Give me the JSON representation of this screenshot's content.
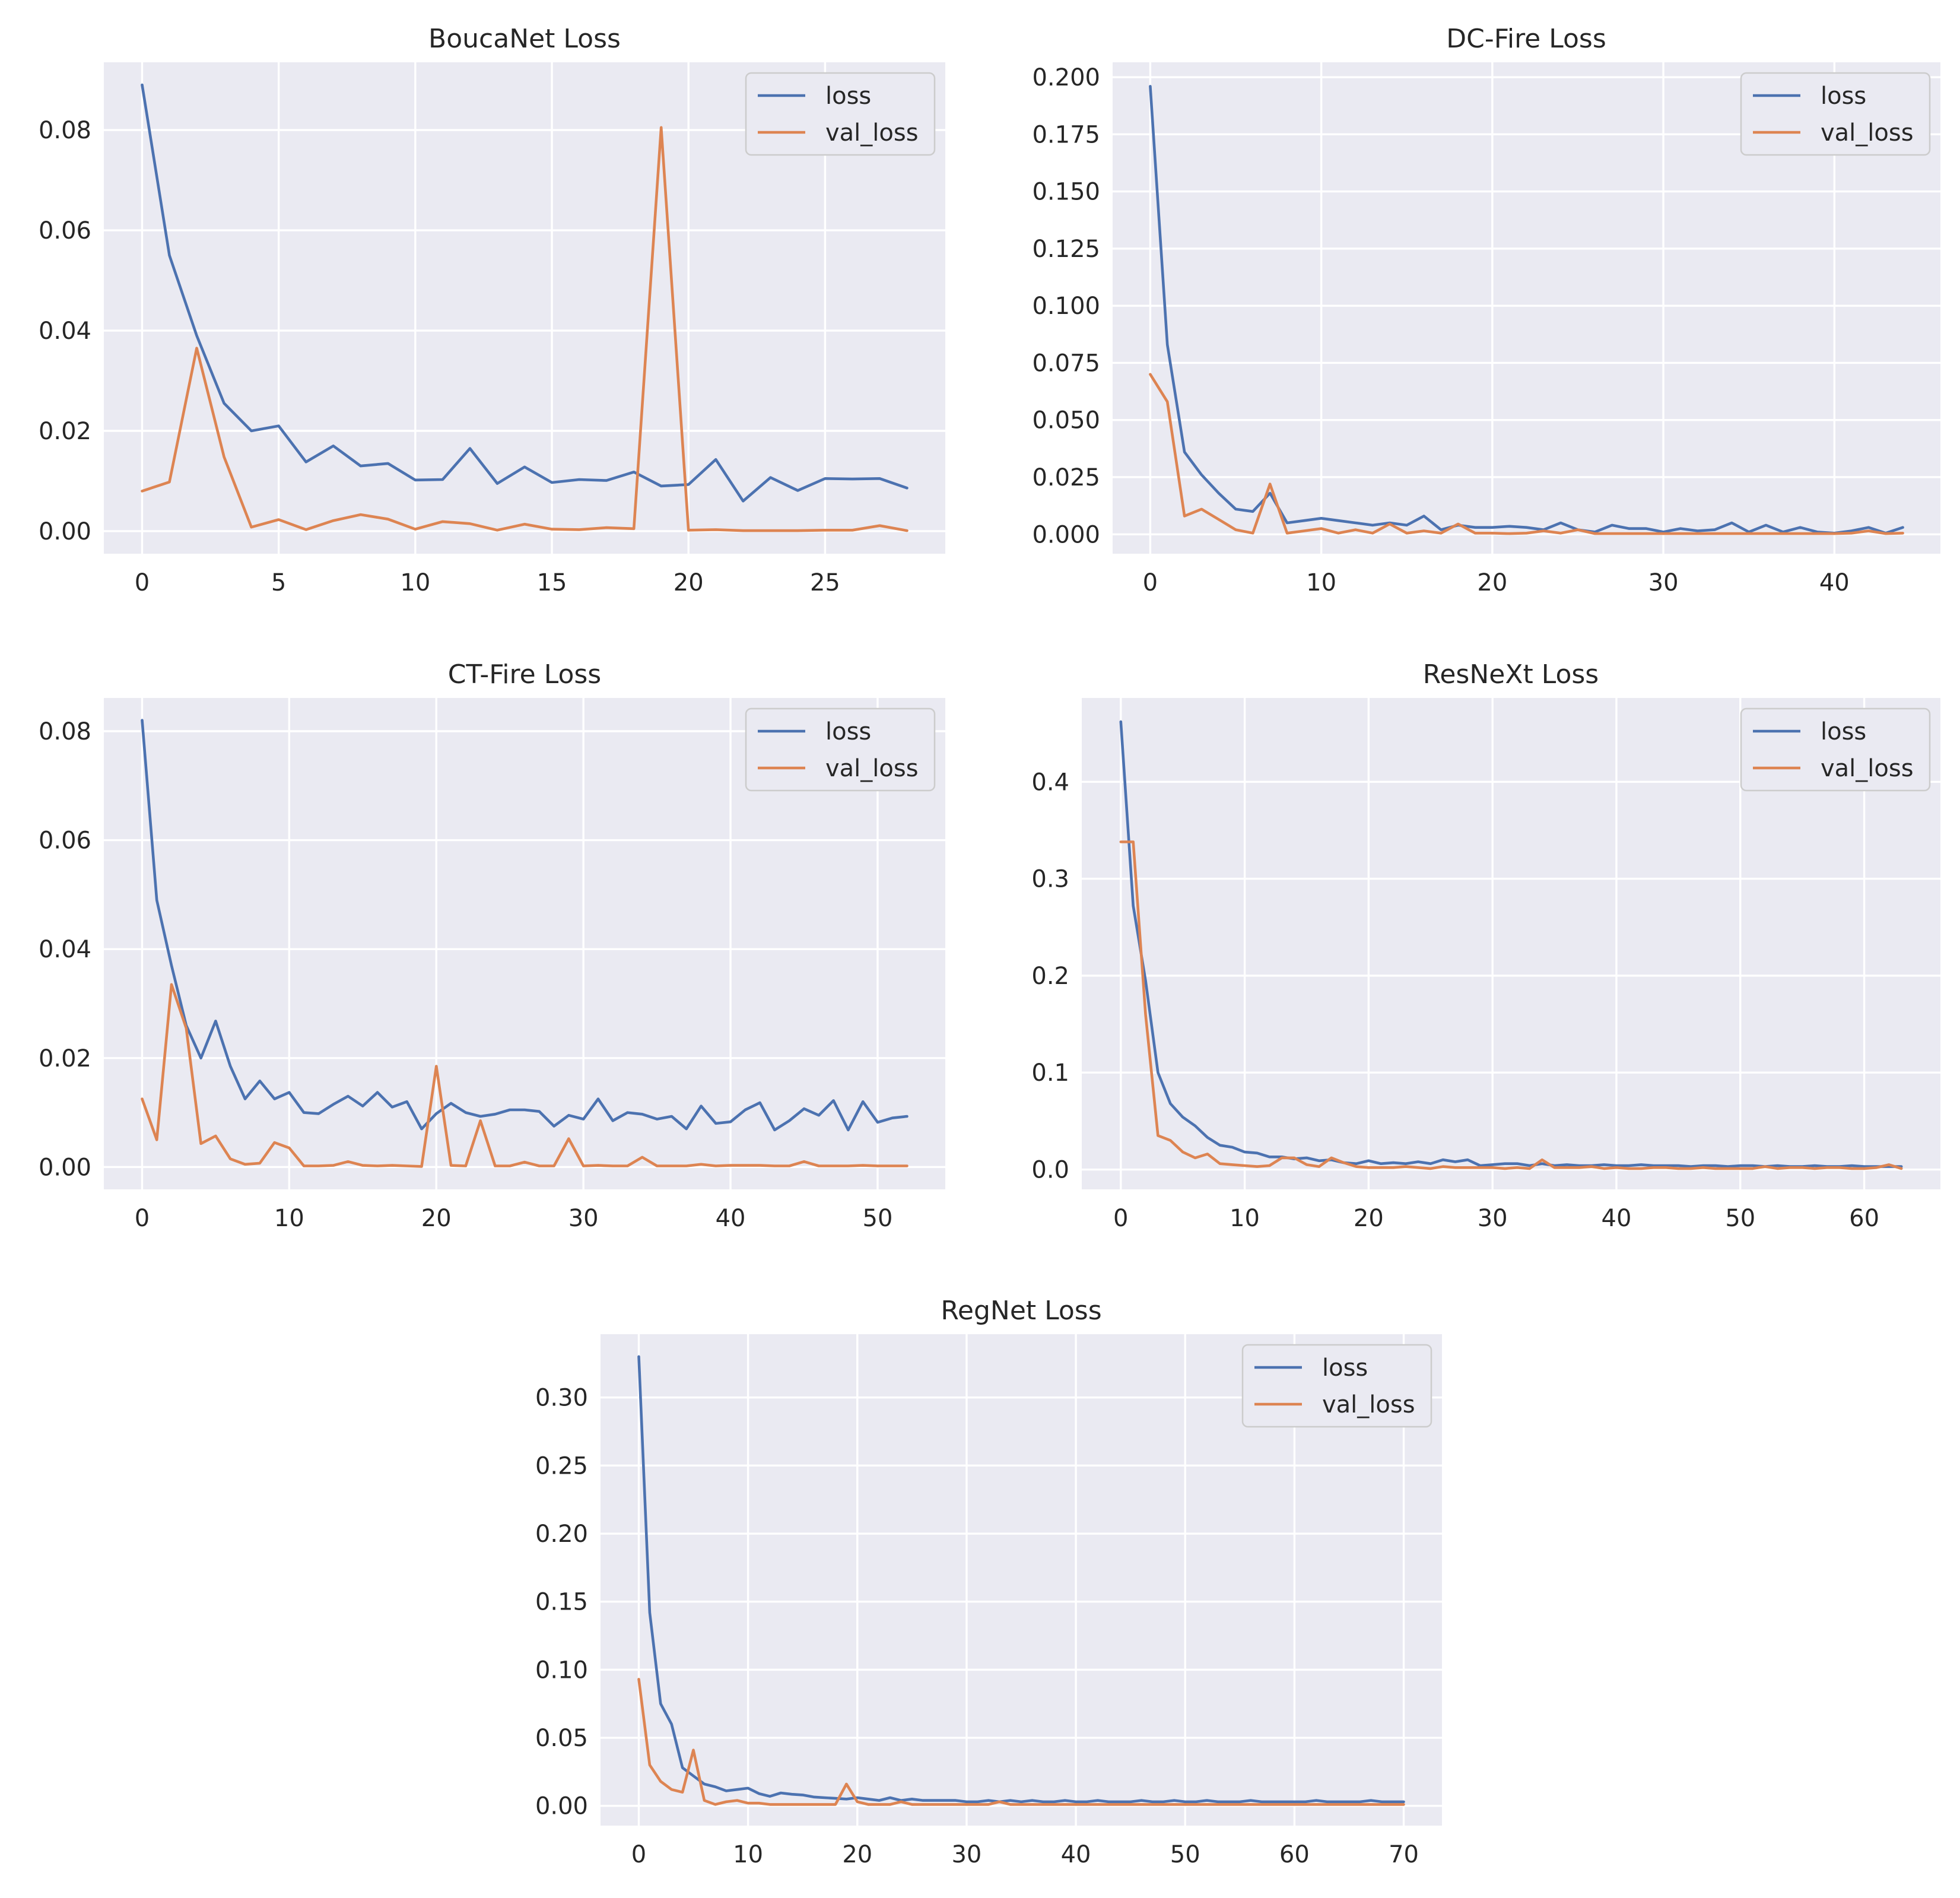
{
  "figure": {
    "background": "#ffffff",
    "plot_background": "#eaeaf2",
    "grid_color": "#ffffff",
    "text_color": "#262626"
  },
  "colors": {
    "loss": "#4c72b0",
    "val_loss": "#dd8452"
  },
  "chart_data": [
    {
      "type": "line",
      "title": "BoucaNet Loss",
      "xlabel": "",
      "ylabel": "",
      "xlim": [
        -1.4,
        29.4
      ],
      "ylim": [
        -0.0045,
        0.0935
      ],
      "xticks": [
        0,
        5,
        10,
        15,
        20,
        25
      ],
      "xtick_labels": [
        "0",
        "5",
        "10",
        "15",
        "20",
        "25"
      ],
      "yticks": [
        0.0,
        0.02,
        0.04,
        0.06,
        0.08
      ],
      "ytick_labels": [
        "0.00",
        "0.02",
        "0.04",
        "0.06",
        "0.08"
      ],
      "grid": true,
      "legend": {
        "position": "top-right",
        "entries": [
          "loss",
          "val_loss"
        ]
      },
      "series": [
        {
          "name": "loss",
          "color": "#4c72b0",
          "x_start": 0,
          "values": [
            0.089,
            0.055,
            0.039,
            0.0255,
            0.02,
            0.021,
            0.0138,
            0.017,
            0.013,
            0.0135,
            0.0102,
            0.0103,
            0.0165,
            0.0095,
            0.0128,
            0.0097,
            0.0103,
            0.0101,
            0.0118,
            0.009,
            0.0093,
            0.0143,
            0.006,
            0.0107,
            0.0081,
            0.0105,
            0.0104,
            0.0105,
            0.0086
          ]
        },
        {
          "name": "val_loss",
          "color": "#dd8452",
          "x_start": 0,
          "values": [
            0.008,
            0.0098,
            0.0365,
            0.0148,
            0.0008,
            0.0023,
            0.0003,
            0.0021,
            0.0033,
            0.0024,
            0.0004,
            0.0019,
            0.0015,
            0.0002,
            0.0014,
            0.0004,
            0.0003,
            0.0007,
            0.0005,
            0.0805,
            0.0002,
            0.0003,
            0.0001,
            0.0001,
            0.0001,
            0.0002,
            0.0002,
            0.0011,
            0.0001
          ]
        }
      ]
    },
    {
      "type": "line",
      "title": "DC-Fire Loss",
      "xlabel": "",
      "ylabel": "",
      "xlim": [
        -2.2,
        46.2
      ],
      "ylim": [
        -0.0085,
        0.2065
      ],
      "xticks": [
        0,
        10,
        20,
        30,
        40
      ],
      "xtick_labels": [
        "0",
        "10",
        "20",
        "30",
        "40"
      ],
      "yticks": [
        0.0,
        0.025,
        0.05,
        0.075,
        0.1,
        0.125,
        0.15,
        0.175,
        0.2
      ],
      "ytick_labels": [
        "0.000",
        "0.025",
        "0.050",
        "0.075",
        "0.100",
        "0.125",
        "0.150",
        "0.175",
        "0.200"
      ],
      "grid": true,
      "legend": {
        "position": "top-right",
        "entries": [
          "loss",
          "val_loss"
        ]
      },
      "series": [
        {
          "name": "loss",
          "color": "#4c72b0",
          "x_start": 0,
          "values": [
            0.196,
            0.083,
            0.036,
            0.026,
            0.018,
            0.011,
            0.01,
            0.018,
            0.005,
            0.006,
            0.007,
            0.006,
            0.005,
            0.004,
            0.005,
            0.004,
            0.008,
            0.002,
            0.004,
            0.003,
            0.003,
            0.0035,
            0.003,
            0.002,
            0.005,
            0.002,
            0.001,
            0.004,
            0.0025,
            0.0025,
            0.001,
            0.0025,
            0.0015,
            0.002,
            0.005,
            0.001,
            0.004,
            0.001,
            0.003,
            0.001,
            0.0005,
            0.0015,
            0.003,
            0.0005,
            0.003
          ]
        },
        {
          "name": "val_loss",
          "color": "#dd8452",
          "x_start": 0,
          "values": [
            0.07,
            0.058,
            0.008,
            0.011,
            0.0065,
            0.002,
            0.0005,
            0.022,
            0.0005,
            0.0015,
            0.0025,
            0.0005,
            0.002,
            0.0005,
            0.0045,
            0.0005,
            0.0015,
            0.0005,
            0.0045,
            0.0005,
            0.0005,
            0.0003,
            0.0005,
            0.0015,
            0.0005,
            0.002,
            0.0003,
            0.0003,
            0.0003,
            0.0003,
            0.0003,
            0.0003,
            0.0003,
            0.0003,
            0.0003,
            0.0003,
            0.0003,
            0.0003,
            0.0003,
            0.0003,
            0.0003,
            0.0005,
            0.0015,
            0.0003,
            0.0005
          ]
        }
      ]
    },
    {
      "type": "line",
      "title": "CT-Fire Loss",
      "xlabel": "",
      "ylabel": "",
      "xlim": [
        -2.6,
        54.6
      ],
      "ylim": [
        -0.0041,
        0.0861
      ],
      "xticks": [
        0,
        10,
        20,
        30,
        40,
        50
      ],
      "xtick_labels": [
        "0",
        "10",
        "20",
        "30",
        "40",
        "50"
      ],
      "yticks": [
        0.0,
        0.02,
        0.04,
        0.06,
        0.08
      ],
      "ytick_labels": [
        "0.00",
        "0.02",
        "0.04",
        "0.06",
        "0.08"
      ],
      "grid": true,
      "legend": {
        "position": "top-right",
        "entries": [
          "loss",
          "val_loss"
        ]
      },
      "series": [
        {
          "name": "loss",
          "color": "#4c72b0",
          "x_start": 0,
          "values": [
            0.082,
            0.049,
            0.037,
            0.026,
            0.02,
            0.0268,
            0.0185,
            0.0125,
            0.0158,
            0.0125,
            0.0137,
            0.01,
            0.0098,
            0.0115,
            0.013,
            0.0112,
            0.0137,
            0.011,
            0.012,
            0.007,
            0.0098,
            0.0117,
            0.01,
            0.0093,
            0.0097,
            0.0105,
            0.0105,
            0.0102,
            0.0075,
            0.0095,
            0.0088,
            0.0125,
            0.0085,
            0.01,
            0.0097,
            0.0088,
            0.0093,
            0.007,
            0.0112,
            0.008,
            0.0083,
            0.0105,
            0.0118,
            0.0068,
            0.0085,
            0.0107,
            0.0095,
            0.0122,
            0.0068,
            0.012,
            0.0082,
            0.009,
            0.0093
          ]
        },
        {
          "name": "val_loss",
          "color": "#dd8452",
          "x_start": 0,
          "values": [
            0.0125,
            0.005,
            0.0335,
            0.0255,
            0.0043,
            0.0057,
            0.0015,
            0.0005,
            0.0007,
            0.0045,
            0.0035,
            0.0002,
            0.0002,
            0.0003,
            0.001,
            0.0003,
            0.0002,
            0.0003,
            0.0002,
            0.0001,
            0.0185,
            0.0003,
            0.0002,
            0.0085,
            0.0002,
            0.0002,
            0.0009,
            0.0002,
            0.0002,
            0.0052,
            0.0002,
            0.0003,
            0.0002,
            0.0002,
            0.0018,
            0.0002,
            0.0002,
            0.0002,
            0.0005,
            0.0002,
            0.0003,
            0.0003,
            0.0003,
            0.0002,
            0.0002,
            0.001,
            0.0002,
            0.0002,
            0.0002,
            0.0003,
            0.0002,
            0.0002,
            0.0002
          ]
        }
      ]
    },
    {
      "type": "line",
      "title": "ResNeXt Loss",
      "xlabel": "",
      "ylabel": "",
      "xlim": [
        -3.15,
        66.15
      ],
      "ylim": [
        -0.0205,
        0.4865
      ],
      "xticks": [
        0,
        10,
        20,
        30,
        40,
        50,
        60
      ],
      "xtick_labels": [
        "0",
        "10",
        "20",
        "30",
        "40",
        "50",
        "60"
      ],
      "yticks": [
        0.0,
        0.1,
        0.2,
        0.3,
        0.4
      ],
      "ytick_labels": [
        "0.0",
        "0.1",
        "0.2",
        "0.3",
        "0.4"
      ],
      "grid": true,
      "legend": {
        "position": "top-right",
        "entries": [
          "loss",
          "val_loss"
        ]
      },
      "series": [
        {
          "name": "loss",
          "color": "#4c72b0",
          "x_start": 0,
          "values": [
            0.462,
            0.272,
            0.195,
            0.1,
            0.068,
            0.054,
            0.045,
            0.033,
            0.025,
            0.023,
            0.018,
            0.017,
            0.013,
            0.013,
            0.011,
            0.012,
            0.009,
            0.01,
            0.007,
            0.006,
            0.009,
            0.006,
            0.007,
            0.006,
            0.008,
            0.006,
            0.01,
            0.008,
            0.01,
            0.004,
            0.005,
            0.006,
            0.006,
            0.004,
            0.006,
            0.004,
            0.005,
            0.004,
            0.004,
            0.005,
            0.004,
            0.004,
            0.005,
            0.004,
            0.004,
            0.004,
            0.003,
            0.004,
            0.004,
            0.003,
            0.004,
            0.004,
            0.003,
            0.004,
            0.003,
            0.003,
            0.004,
            0.003,
            0.003,
            0.004,
            0.003,
            0.003,
            0.003,
            0.003
          ]
        },
        {
          "name": "val_loss",
          "color": "#dd8452",
          "x_start": 0,
          "values": [
            0.338,
            0.338,
            0.16,
            0.035,
            0.03,
            0.018,
            0.012,
            0.016,
            0.006,
            0.005,
            0.004,
            0.003,
            0.004,
            0.012,
            0.012,
            0.005,
            0.003,
            0.012,
            0.007,
            0.003,
            0.002,
            0.002,
            0.002,
            0.003,
            0.002,
            0.001,
            0.003,
            0.002,
            0.002,
            0.002,
            0.002,
            0.001,
            0.002,
            0.001,
            0.01,
            0.002,
            0.002,
            0.002,
            0.003,
            0.001,
            0.002,
            0.001,
            0.001,
            0.002,
            0.002,
            0.001,
            0.001,
            0.002,
            0.001,
            0.001,
            0.001,
            0.001,
            0.003,
            0.001,
            0.002,
            0.002,
            0.001,
            0.002,
            0.002,
            0.001,
            0.001,
            0.002,
            0.005,
            0.001
          ]
        }
      ]
    },
    {
      "type": "line",
      "title": "RegNet Loss",
      "xlabel": "",
      "ylabel": "",
      "xlim": [
        -3.5,
        73.5
      ],
      "ylim": [
        -0.0145,
        0.3465
      ],
      "xticks": [
        0,
        10,
        20,
        30,
        40,
        50,
        60,
        70
      ],
      "xtick_labels": [
        "0",
        "10",
        "20",
        "30",
        "40",
        "50",
        "60",
        "70"
      ],
      "yticks": [
        0.0,
        0.05,
        0.1,
        0.15,
        0.2,
        0.25,
        0.3
      ],
      "ytick_labels": [
        "0.00",
        "0.05",
        "0.10",
        "0.15",
        "0.20",
        "0.25",
        "0.30"
      ],
      "grid": true,
      "legend": {
        "position": "top-right",
        "entries": [
          "loss",
          "val_loss"
        ]
      },
      "series": [
        {
          "name": "loss",
          "color": "#4c72b0",
          "x_start": 0,
          "values": [
            0.33,
            0.142,
            0.075,
            0.06,
            0.028,
            0.022,
            0.016,
            0.014,
            0.011,
            0.012,
            0.013,
            0.009,
            0.007,
            0.0095,
            0.0085,
            0.008,
            0.0065,
            0.006,
            0.0055,
            0.005,
            0.006,
            0.005,
            0.004,
            0.006,
            0.004,
            0.005,
            0.004,
            0.004,
            0.004,
            0.004,
            0.003,
            0.003,
            0.004,
            0.003,
            0.004,
            0.003,
            0.004,
            0.003,
            0.003,
            0.004,
            0.003,
            0.003,
            0.004,
            0.003,
            0.003,
            0.003,
            0.004,
            0.003,
            0.003,
            0.004,
            0.003,
            0.003,
            0.004,
            0.003,
            0.003,
            0.003,
            0.004,
            0.003,
            0.003,
            0.003,
            0.003,
            0.003,
            0.004,
            0.003,
            0.003,
            0.003,
            0.003,
            0.004,
            0.003,
            0.003,
            0.003
          ]
        },
        {
          "name": "val_loss",
          "color": "#dd8452",
          "x_start": 0,
          "values": [
            0.093,
            0.03,
            0.018,
            0.012,
            0.01,
            0.041,
            0.004,
            0.001,
            0.003,
            0.004,
            0.002,
            0.002,
            0.001,
            0.001,
            0.001,
            0.001,
            0.001,
            0.001,
            0.001,
            0.016,
            0.003,
            0.001,
            0.001,
            0.001,
            0.003,
            0.001,
            0.001,
            0.001,
            0.001,
            0.001,
            0.001,
            0.001,
            0.001,
            0.003,
            0.001,
            0.001,
            0.001,
            0.001,
            0.001,
            0.001,
            0.001,
            0.001,
            0.001,
            0.001,
            0.001,
            0.001,
            0.001,
            0.001,
            0.001,
            0.001,
            0.001,
            0.001,
            0.001,
            0.001,
            0.001,
            0.001,
            0.001,
            0.001,
            0.001,
            0.001,
            0.001,
            0.001,
            0.001,
            0.001,
            0.001,
            0.001,
            0.001,
            0.001,
            0.001,
            0.001,
            0.001
          ]
        }
      ]
    }
  ]
}
